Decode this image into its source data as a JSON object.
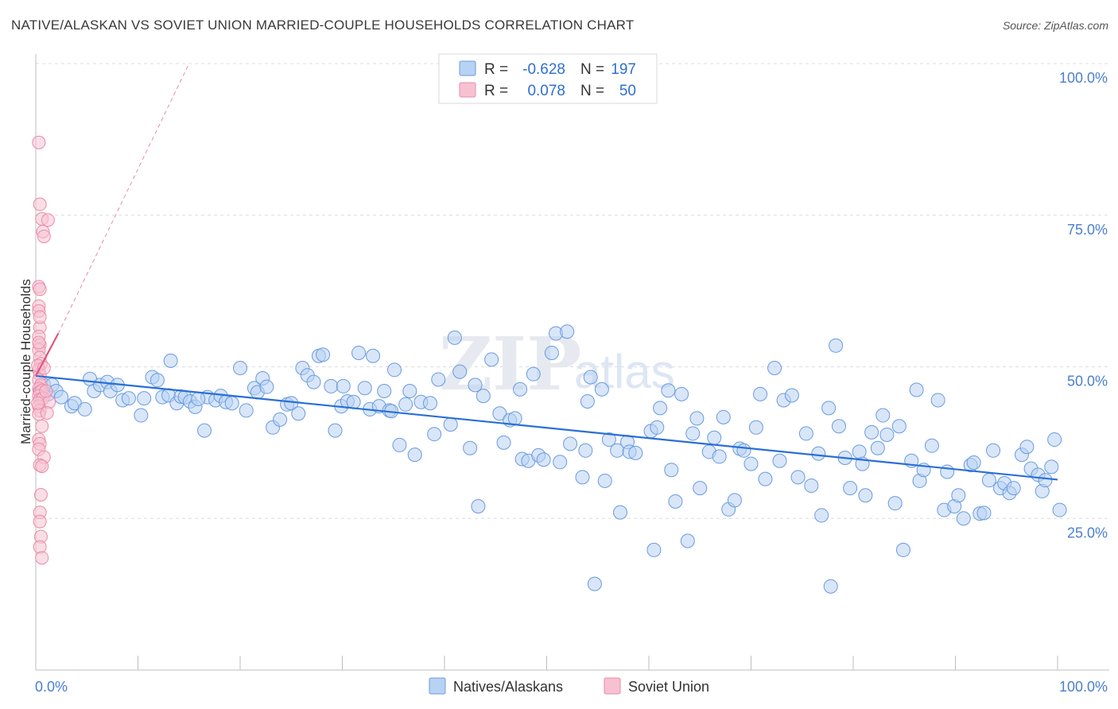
{
  "header": {
    "title": "NATIVE/ALASKAN VS SOVIET UNION MARRIED-COUPLE HOUSEHOLDS CORRELATION CHART",
    "source": "Source: ZipAtlas.com"
  },
  "watermark": {
    "zip": "ZIP",
    "atlas": "atlas"
  },
  "colors": {
    "blue_fill": "#b8d2f3",
    "blue_stroke": "#6a9be0",
    "blue_line": "#2a6fd6",
    "pink_fill": "#f6c2d2",
    "pink_stroke": "#ea8aaa",
    "pink_line": "#e0557e",
    "axis_text": "#4a7fd0"
  },
  "legend": {
    "rows": [
      {
        "r_label": "R =",
        "r_value": "-0.628",
        "n_label": "N =",
        "n_value": "197"
      },
      {
        "r_label": "R =",
        "r_value": "0.078",
        "n_label": "N =",
        "n_value": "50"
      }
    ]
  },
  "bottom_legend": {
    "series1": "Natives/Alaskans",
    "series2": "Soviet Union"
  },
  "chart_data": {
    "type": "scatter",
    "title": "NATIVE/ALASKAN VS SOVIET UNION MARRIED-COUPLE HOUSEHOLDS CORRELATION CHART",
    "xlabel": "",
    "ylabel": "Married-couple Households",
    "xlim": [
      0,
      100
    ],
    "ylim": [
      0,
      100
    ],
    "x_tick_labels": [
      "0.0%",
      "100.0%"
    ],
    "y_tick_labels": [
      "25.0%",
      "50.0%",
      "75.0%",
      "100.0%"
    ],
    "y_ticks": [
      25,
      50,
      75,
      100
    ],
    "series": [
      {
        "name": "Natives/Alaskans",
        "R": -0.628,
        "N": 197,
        "trend": {
          "x": [
            0,
            100
          ],
          "y": [
            48.5,
            31.4
          ]
        },
        "points": [
          [
            0.4,
            46
          ],
          [
            0.8,
            47
          ],
          [
            1.2,
            45.5
          ],
          [
            1.6,
            47
          ],
          [
            2,
            46
          ],
          [
            2.5,
            45
          ],
          [
            3.5,
            43.5
          ],
          [
            3.8,
            44
          ],
          [
            4.8,
            43
          ],
          [
            5.3,
            48
          ],
          [
            5.7,
            46
          ],
          [
            6.3,
            47
          ],
          [
            7,
            47.5
          ],
          [
            7.3,
            46
          ],
          [
            8,
            47
          ],
          [
            8.5,
            44.5
          ],
          [
            9.1,
            44.8
          ],
          [
            10.3,
            42
          ],
          [
            10.6,
            44.8
          ],
          [
            11.4,
            48.3
          ],
          [
            11.9,
            47.8
          ],
          [
            12.4,
            45
          ],
          [
            13,
            45.3
          ],
          [
            13.2,
            51
          ],
          [
            13.8,
            44
          ],
          [
            14.2,
            45.1
          ],
          [
            14.6,
            45
          ],
          [
            15.1,
            44.3
          ],
          [
            15.6,
            43.4
          ],
          [
            16.5,
            39.5
          ],
          [
            16.8,
            45
          ],
          [
            17.6,
            44.5
          ],
          [
            18.1,
            45.2
          ],
          [
            18.6,
            44.2
          ],
          [
            19.2,
            44
          ],
          [
            20,
            49.8
          ],
          [
            20.6,
            42.8
          ],
          [
            21.4,
            46.5
          ],
          [
            21.7,
            45.8
          ],
          [
            22.2,
            48.1
          ],
          [
            22.6,
            46.7
          ],
          [
            23.2,
            40
          ],
          [
            23.9,
            41.3
          ],
          [
            24.6,
            43.8
          ],
          [
            25,
            44
          ],
          [
            25.7,
            42.3
          ],
          [
            26.1,
            49.8
          ],
          [
            26.6,
            48.6
          ],
          [
            27.2,
            47.5
          ],
          [
            27.7,
            51.8
          ],
          [
            28.1,
            52
          ],
          [
            28.9,
            46.8
          ],
          [
            29.3,
            39.5
          ],
          [
            29.9,
            43.5
          ],
          [
            30.1,
            46.8
          ],
          [
            30.5,
            44.3
          ],
          [
            31.1,
            44.2
          ],
          [
            31.6,
            52.3
          ],
          [
            32.2,
            46.5
          ],
          [
            32.7,
            43
          ],
          [
            33,
            51.8
          ],
          [
            33.6,
            43.5
          ],
          [
            34.1,
            46
          ],
          [
            34.6,
            42.8
          ],
          [
            35.1,
            49.5
          ],
          [
            35.6,
            37.1
          ],
          [
            36.2,
            43.8
          ],
          [
            36.6,
            46
          ],
          [
            37.1,
            35.5
          ],
          [
            37.7,
            44.2
          ],
          [
            38.6,
            44
          ],
          [
            39,
            38.9
          ],
          [
            39.4,
            47.9
          ],
          [
            40.6,
            40.5
          ],
          [
            41,
            54.8
          ],
          [
            41.5,
            49.2
          ],
          [
            42.5,
            36.6
          ],
          [
            43,
            47
          ],
          [
            43.3,
            27
          ],
          [
            43.8,
            45.2
          ],
          [
            44.6,
            51.2
          ],
          [
            45.4,
            42.3
          ],
          [
            45.8,
            37.5
          ],
          [
            46.4,
            41.2
          ],
          [
            46.9,
            41.5
          ],
          [
            47.4,
            46.3
          ],
          [
            47.6,
            34.8
          ],
          [
            48.2,
            34.5
          ],
          [
            48.7,
            48.8
          ],
          [
            49.2,
            35.4
          ],
          [
            49.7,
            34.7
          ],
          [
            50.5,
            52.3
          ],
          [
            50.9,
            55.5
          ],
          [
            51.3,
            34.3
          ],
          [
            52,
            55.8
          ],
          [
            52.3,
            37.3
          ],
          [
            53.5,
            31.8
          ],
          [
            53.8,
            36.2
          ],
          [
            54,
            44.3
          ],
          [
            54.3,
            48.3
          ],
          [
            55.4,
            46.3
          ],
          [
            55.7,
            31.2
          ],
          [
            56.1,
            38
          ],
          [
            56.9,
            36.2
          ],
          [
            57.2,
            26
          ],
          [
            57.9,
            37.6
          ],
          [
            58.1,
            36
          ],
          [
            58.7,
            35.8
          ],
          [
            60.2,
            39.4
          ],
          [
            60.5,
            19.8
          ],
          [
            60.8,
            40
          ],
          [
            61.1,
            43.2
          ],
          [
            61.9,
            46.1
          ],
          [
            62.2,
            33
          ],
          [
            62.6,
            27.8
          ],
          [
            63.2,
            45.5
          ],
          [
            63.8,
            21.3
          ],
          [
            64.3,
            39
          ],
          [
            64.7,
            41.5
          ],
          [
            65,
            30
          ],
          [
            65.9,
            36
          ],
          [
            66.4,
            38.3
          ],
          [
            66.9,
            35.2
          ],
          [
            67.3,
            41.7
          ],
          [
            67.8,
            26.5
          ],
          [
            68.4,
            28
          ],
          [
            68.9,
            36.5
          ],
          [
            69.3,
            36.2
          ],
          [
            70,
            34
          ],
          [
            70.5,
            40
          ],
          [
            70.9,
            45.5
          ],
          [
            71.4,
            31.5
          ],
          [
            72.3,
            49.8
          ],
          [
            72.8,
            34.5
          ],
          [
            73.2,
            44.5
          ],
          [
            74,
            45.3
          ],
          [
            74.6,
            31.8
          ],
          [
            75.4,
            39
          ],
          [
            75.9,
            30.4
          ],
          [
            76.6,
            35.7
          ],
          [
            76.9,
            25.5
          ],
          [
            77.6,
            43.2
          ],
          [
            77.8,
            13.8
          ],
          [
            78.3,
            53.5
          ],
          [
            78.6,
            40.2
          ],
          [
            79.2,
            35
          ],
          [
            79.7,
            30
          ],
          [
            80.6,
            36
          ],
          [
            80.9,
            34
          ],
          [
            81.2,
            28.8
          ],
          [
            81.8,
            39.2
          ],
          [
            82.4,
            36.6
          ],
          [
            82.9,
            42
          ],
          [
            83.3,
            38.8
          ],
          [
            84.1,
            27.5
          ],
          [
            84.5,
            40.2
          ],
          [
            84.9,
            19.8
          ],
          [
            85.7,
            34.5
          ],
          [
            86.2,
            46.2
          ],
          [
            86.5,
            31.2
          ],
          [
            86.9,
            33
          ],
          [
            87.7,
            37
          ],
          [
            88.3,
            44.5
          ],
          [
            88.9,
            26.4
          ],
          [
            89.2,
            32.7
          ],
          [
            89.9,
            27
          ],
          [
            90.3,
            28.8
          ],
          [
            90.8,
            25
          ],
          [
            91.5,
            33.8
          ],
          [
            91.8,
            34.2
          ],
          [
            92.4,
            25.8
          ],
          [
            92.8,
            25.9
          ],
          [
            93.3,
            31.3
          ],
          [
            93.7,
            36.2
          ],
          [
            94.4,
            30
          ],
          [
            94.8,
            30.8
          ],
          [
            95.3,
            29.2
          ],
          [
            95.7,
            30
          ],
          [
            96.5,
            35.5
          ],
          [
            97,
            36.8
          ],
          [
            97.4,
            33.2
          ],
          [
            98.1,
            32.2
          ],
          [
            98.5,
            29.5
          ],
          [
            98.8,
            31.3
          ],
          [
            99.4,
            33.5
          ],
          [
            99.7,
            38
          ],
          [
            100.2,
            26.4
          ],
          [
            34.8,
            42.7
          ],
          [
            15.9,
            44.7
          ],
          [
            54.7,
            14.2
          ]
        ]
      },
      {
        "name": "Soviet Union",
        "R": 0.078,
        "N": 50,
        "trend": {
          "x": [
            0,
            2.2
          ],
          "y": [
            48.5,
            55.5
          ]
        },
        "trend_extension": {
          "x": [
            2.2,
            15
          ],
          "y": [
            55.5,
            100
          ]
        },
        "points": [
          [
            0.3,
            87
          ],
          [
            0.4,
            76.8
          ],
          [
            0.6,
            74.4
          ],
          [
            0.7,
            72.3
          ],
          [
            0.8,
            71.5
          ],
          [
            1.2,
            74.2
          ],
          [
            0.3,
            63.2
          ],
          [
            0.4,
            62.8
          ],
          [
            0.3,
            60
          ],
          [
            0.3,
            59.2
          ],
          [
            0.4,
            56.5
          ],
          [
            0.3,
            55
          ],
          [
            0.4,
            53.6
          ],
          [
            0.3,
            52.8
          ],
          [
            0.4,
            51.5
          ],
          [
            0.5,
            50.5
          ],
          [
            0.3,
            49.5
          ],
          [
            0.4,
            48.7
          ],
          [
            0.3,
            47.8
          ],
          [
            0.5,
            47
          ],
          [
            0.3,
            46.4
          ],
          [
            0.4,
            45.8
          ],
          [
            0.6,
            46.1
          ],
          [
            0.3,
            45.2
          ],
          [
            0.4,
            44.6
          ],
          [
            0.7,
            44.8
          ],
          [
            1.3,
            44.2
          ],
          [
            0.3,
            43.5
          ],
          [
            0.4,
            42.8
          ],
          [
            0.3,
            42.2
          ],
          [
            1.1,
            42.4
          ],
          [
            0.3,
            38
          ],
          [
            0.4,
            37.3
          ],
          [
            0.3,
            36.4
          ],
          [
            0.8,
            35.1
          ],
          [
            0.4,
            33.8
          ],
          [
            0.6,
            33.6
          ],
          [
            0.5,
            28.9
          ],
          [
            0.4,
            26
          ],
          [
            0.4,
            24.5
          ],
          [
            0.5,
            22
          ],
          [
            0.4,
            20.3
          ],
          [
            0.6,
            18.5
          ],
          [
            0.3,
            54
          ],
          [
            0.2,
            50.2
          ],
          [
            0.8,
            49.8
          ],
          [
            1,
            46
          ],
          [
            0.2,
            44
          ],
          [
            0.6,
            40.2
          ],
          [
            0.4,
            58.2
          ]
        ]
      }
    ]
  }
}
